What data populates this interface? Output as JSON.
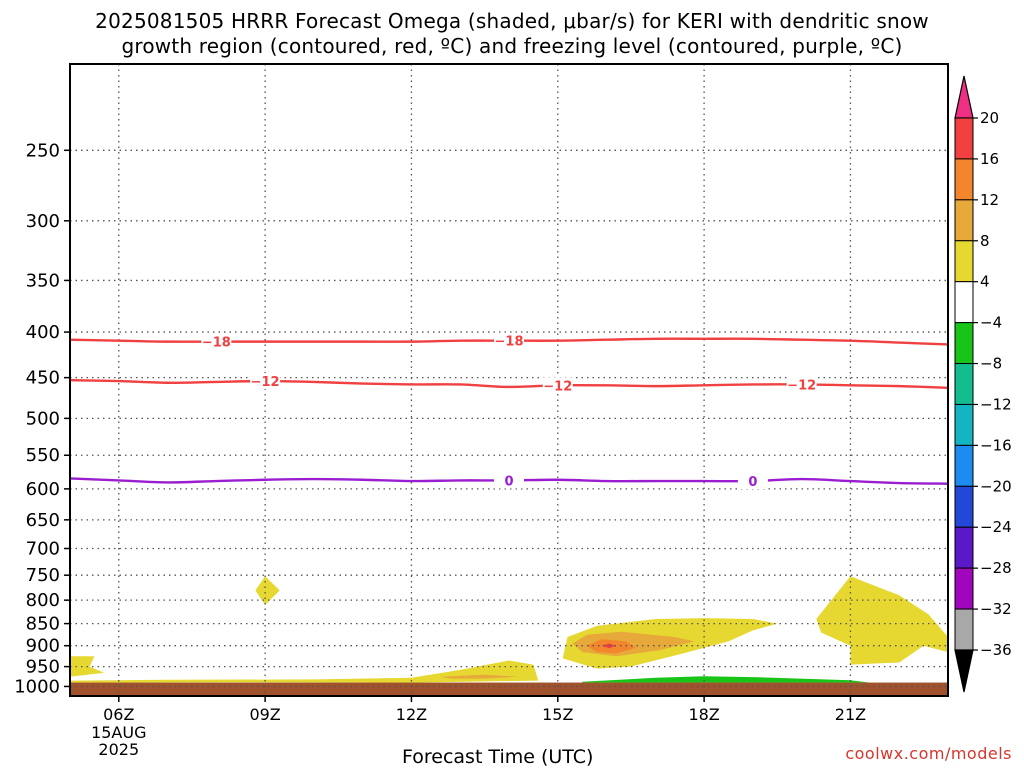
{
  "title_line1": "2025081505 HRRR Forecast Omega (shaded, μbar/s) for KERI with dendritic snow",
  "title_line2": "growth region (contoured, red, ºC) and freezing level (contoured, purple, ºC)",
  "credit": "coolwx.com/models",
  "chart_data": {
    "type": "heatmap",
    "xlabel": "Forecast Time (UTC)",
    "x_ticks": [
      {
        "hour": 6,
        "label": "06Z",
        "sub": [
          "15AUG",
          "2025"
        ]
      },
      {
        "hour": 9,
        "label": "09Z"
      },
      {
        "hour": 12,
        "label": "12Z"
      },
      {
        "hour": 15,
        "label": "15Z"
      },
      {
        "hour": 18,
        "label": "18Z"
      },
      {
        "hour": 21,
        "label": "21Z"
      }
    ],
    "xlim": [
      5,
      23
    ],
    "y_ticks": [
      250,
      300,
      350,
      400,
      450,
      500,
      550,
      600,
      650,
      700,
      750,
      800,
      850,
      900,
      950,
      1000
    ],
    "ylim_hPa": [
      200,
      1025
    ],
    "y_scale": "log",
    "surface_pressure_hPa": 990,
    "grid": "dotted",
    "colorbar": {
      "labels": [
        "20",
        "16",
        "12",
        "8",
        "4",
        "−4",
        "−8",
        "−12",
        "−16",
        "−20",
        "−24",
        "−28",
        "−32",
        "−36"
      ],
      "colors": [
        "#ee2f84",
        "#f04040",
        "#f3852c",
        "#e6a93a",
        "#e6d831",
        "#ffffff",
        "#18c418",
        "#13bd8e",
        "#14b5c2",
        "#1d8cf0",
        "#2347d8",
        "#5b18c8",
        "#a106bd",
        "#a8a8a8",
        "#000000"
      ]
    },
    "isotherms": [
      {
        "value": -18,
        "label": "−18",
        "color": "#f04040",
        "points": [
          [
            5,
            408
          ],
          [
            6,
            409
          ],
          [
            7,
            410
          ],
          [
            8,
            410
          ],
          [
            9,
            410
          ],
          [
            10,
            410
          ],
          [
            11,
            410
          ],
          [
            12,
            410
          ],
          [
            13,
            409
          ],
          [
            14,
            409
          ],
          [
            15,
            409
          ],
          [
            16,
            408
          ],
          [
            17,
            407
          ],
          [
            18,
            407
          ],
          [
            19,
            407
          ],
          [
            20,
            408
          ],
          [
            21,
            409
          ],
          [
            22,
            411
          ],
          [
            23,
            413
          ]
        ],
        "label_hours": [
          8,
          14
        ]
      },
      {
        "value": -12,
        "label": "−12",
        "color": "#f04040",
        "points": [
          [
            5,
            453
          ],
          [
            6,
            454
          ],
          [
            7,
            456
          ],
          [
            8,
            455
          ],
          [
            9,
            454
          ],
          [
            10,
            455
          ],
          [
            11,
            457
          ],
          [
            12,
            458
          ],
          [
            13,
            458
          ],
          [
            14,
            461
          ],
          [
            15,
            459
          ],
          [
            16,
            459
          ],
          [
            17,
            460
          ],
          [
            18,
            459
          ],
          [
            19,
            458
          ],
          [
            20,
            458
          ],
          [
            21,
            459
          ],
          [
            22,
            460
          ],
          [
            23,
            462
          ]
        ],
        "label_hours": [
          9,
          15,
          20
        ]
      },
      {
        "value": 0,
        "label": "0",
        "color": "#9a1ed0",
        "points": [
          [
            5,
            584
          ],
          [
            6,
            587
          ],
          [
            7,
            590
          ],
          [
            8,
            588
          ],
          [
            9,
            586
          ],
          [
            10,
            585
          ],
          [
            11,
            586
          ],
          [
            12,
            588
          ],
          [
            13,
            587
          ],
          [
            14,
            587
          ],
          [
            15,
            586
          ],
          [
            16,
            588
          ],
          [
            17,
            588
          ],
          [
            18,
            588
          ],
          [
            19,
            588
          ],
          [
            20,
            585
          ],
          [
            21,
            588
          ],
          [
            22,
            591
          ],
          [
            23,
            592
          ]
        ],
        "label_hours": [
          14,
          19
        ]
      }
    ],
    "omega_regions": [
      {
        "value_range": "4 to 8",
        "color": "#e6d831",
        "points": [
          [
            5,
            925
          ],
          [
            5.5,
            925
          ],
          [
            5.4,
            950
          ],
          [
            5.7,
            965
          ],
          [
            5,
            975
          ]
        ]
      },
      {
        "value_range": "4 to 8",
        "color": "#e6d831",
        "points": [
          [
            5,
            985
          ],
          [
            7,
            983
          ],
          [
            10,
            982
          ],
          [
            12,
            978
          ],
          [
            13,
            958
          ],
          [
            14,
            935
          ],
          [
            14.5,
            945
          ],
          [
            14.6,
            985
          ],
          [
            12,
            990
          ],
          [
            8,
            989
          ],
          [
            5,
            990
          ]
        ]
      },
      {
        "value_range": "4 to 8",
        "color": "#e6d831",
        "points": [
          [
            9,
            752
          ],
          [
            9.3,
            780
          ],
          [
            9,
            810
          ],
          [
            8.8,
            780
          ]
        ]
      },
      {
        "value_range": "4 to 8",
        "color": "#e6d831",
        "points": [
          [
            15.2,
            880
          ],
          [
            15.8,
            855
          ],
          [
            17,
            840
          ],
          [
            18,
            838
          ],
          [
            19,
            840
          ],
          [
            19.5,
            850
          ],
          [
            19,
            865
          ],
          [
            18.5,
            890
          ],
          [
            17.5,
            920
          ],
          [
            16.5,
            950
          ],
          [
            15.8,
            955
          ],
          [
            15.1,
            930
          ]
        ]
      },
      {
        "value_range": "4 to 8",
        "color": "#e6d831",
        "points": [
          [
            20.3,
            840
          ],
          [
            21,
            752
          ],
          [
            22,
            790
          ],
          [
            22.6,
            830
          ],
          [
            23,
            880
          ],
          [
            23,
            915
          ],
          [
            22.5,
            900
          ],
          [
            22,
            940
          ],
          [
            21,
            945
          ],
          [
            21,
            900
          ],
          [
            20.4,
            870
          ]
        ]
      },
      {
        "value_range": "8 to 12",
        "color": "#e6a93a",
        "points": [
          [
            15.3,
            895
          ],
          [
            15.6,
            875
          ],
          [
            16.3,
            868
          ],
          [
            17.4,
            880
          ],
          [
            17.8,
            890
          ],
          [
            17.1,
            910
          ],
          [
            16.2,
            925
          ],
          [
            15.5,
            915
          ]
        ]
      },
      {
        "value_range": "8 to 12",
        "color": "#e6a93a",
        "points": [
          [
            12.6,
            975
          ],
          [
            13.5,
            970
          ],
          [
            14.2,
            975
          ],
          [
            13.5,
            980
          ],
          [
            12.8,
            980
          ]
        ]
      },
      {
        "value_range": "12 to 16",
        "color": "#f3852c",
        "points": [
          [
            15.6,
            900
          ],
          [
            15.9,
            885
          ],
          [
            16.4,
            890
          ],
          [
            16.6,
            905
          ],
          [
            16.2,
            918
          ],
          [
            15.8,
            915
          ]
        ]
      },
      {
        "value_range": "16 to 20",
        "color": "#f04040",
        "points": [
          [
            15.9,
            900
          ],
          [
            16.05,
            895
          ],
          [
            16.2,
            900
          ],
          [
            16.05,
            906
          ]
        ]
      },
      {
        "value_range": "-4 to -8",
        "color": "#18c418",
        "points": [
          [
            15.5,
            988
          ],
          [
            17,
            978
          ],
          [
            18,
            974
          ],
          [
            19,
            976
          ],
          [
            21,
            984
          ],
          [
            21.4,
            990
          ],
          [
            15.5,
            990
          ]
        ]
      }
    ]
  }
}
